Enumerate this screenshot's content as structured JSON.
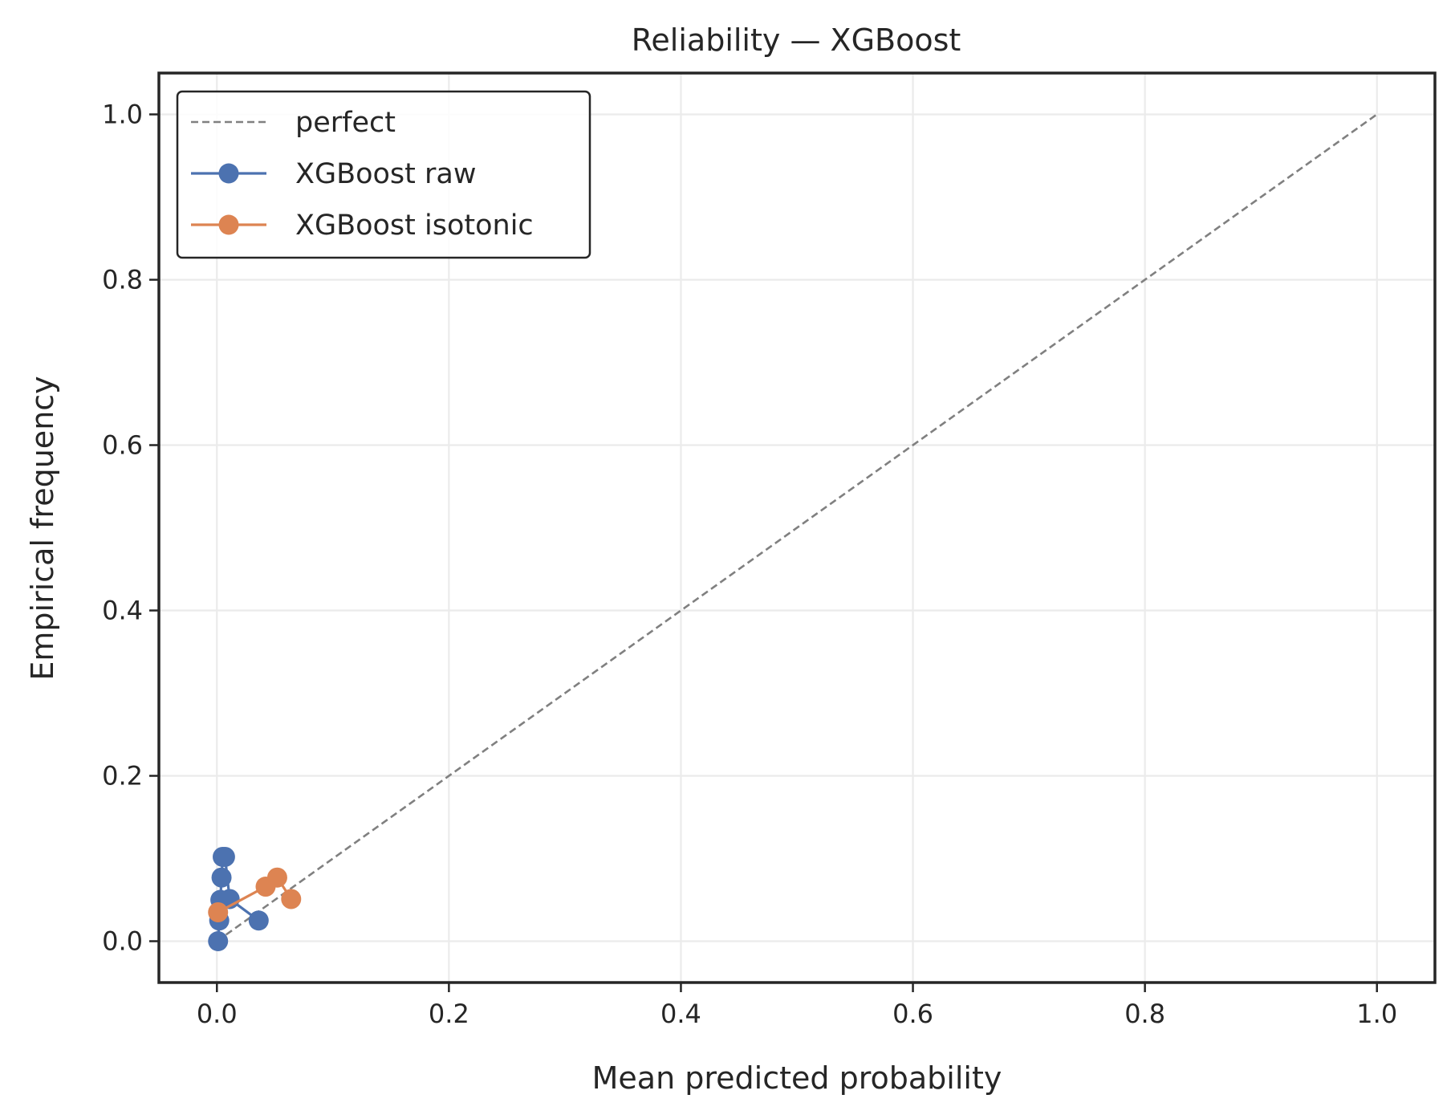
{
  "chart_data": {
    "type": "line",
    "title": "Reliability — XGBoost",
    "xlabel": "Mean predicted probability",
    "ylabel": "Empirical frequency",
    "xlim": [
      -0.05,
      1.05
    ],
    "ylim": [
      -0.05,
      1.05
    ],
    "x_ticks": [
      "0.0",
      "0.2",
      "0.4",
      "0.6",
      "0.8",
      "1.0"
    ],
    "y_ticks": [
      "0.0",
      "0.2",
      "0.4",
      "0.6",
      "0.8",
      "1.0"
    ],
    "grid": true,
    "legend_position": "top-left",
    "series": [
      {
        "name": "perfect",
        "style": "dashed",
        "color": "#808080",
        "x": [
          0.0,
          1.0
        ],
        "y": [
          0.0,
          1.0
        ]
      },
      {
        "name": "XGBoost raw",
        "style": "line-marker",
        "color": "#4c72b0",
        "x": [
          0.001,
          0.002,
          0.003,
          0.004,
          0.005,
          0.007,
          0.011,
          0.036
        ],
        "y": [
          0.0,
          0.025,
          0.05,
          0.077,
          0.102,
          0.102,
          0.051,
          0.025
        ]
      },
      {
        "name": "XGBoost isotonic",
        "style": "line-marker",
        "color": "#dd8452",
        "x": [
          0.001,
          0.042,
          0.052,
          0.064
        ],
        "y": [
          0.035,
          0.066,
          0.077,
          0.051
        ]
      }
    ]
  }
}
